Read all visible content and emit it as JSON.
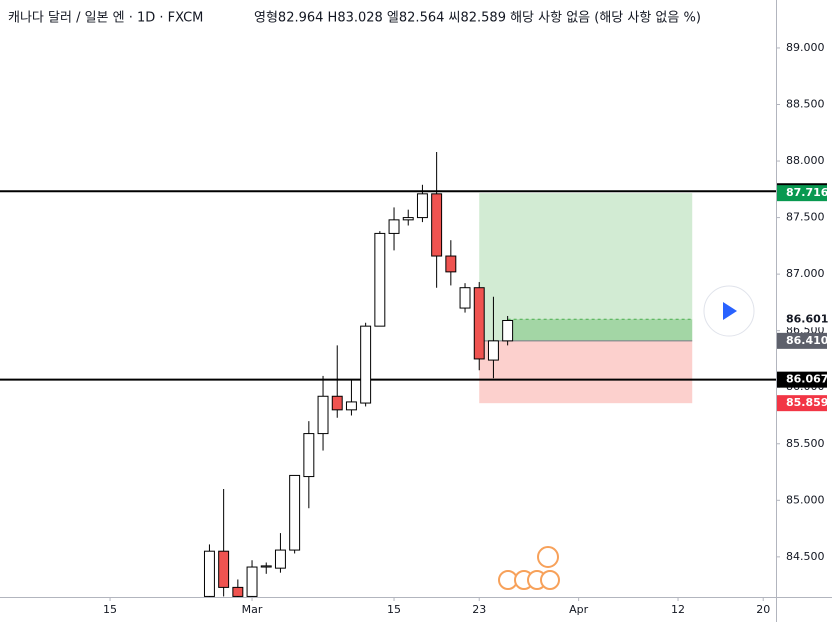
{
  "chart_data": {
    "type": "candlestick",
    "title": "캐나다 달러 / 일본 엔 · 1D · FXCM",
    "legend_text": "영형82.964 H83.028 엘82.564 씨82.589 해당 사항 없음 (해당 사항 없음 %)",
    "x": [
      -3,
      -2,
      -1,
      0,
      1,
      2,
      3,
      4,
      5,
      6,
      7,
      8,
      9,
      10,
      11,
      12,
      13,
      14,
      15,
      16,
      17,
      18
    ],
    "open": [
      84.15,
      84.55,
      84.23,
      84.15,
      84.41,
      84.4,
      84.56,
      85.21,
      85.59,
      85.92,
      85.8,
      85.86,
      86.54,
      87.36,
      87.48,
      87.5,
      87.71,
      87.16,
      86.7,
      86.88,
      86.24,
      86.41
    ],
    "high": [
      84.61,
      85.1,
      84.3,
      84.47,
      84.45,
      84.71,
      85.22,
      85.7,
      86.1,
      86.37,
      86.06,
      86.57,
      87.38,
      87.59,
      87.57,
      87.79,
      88.08,
      87.3,
      86.92,
      86.93,
      86.8,
      86.63
    ],
    "low": [
      84.1,
      84.15,
      84.1,
      84.1,
      84.35,
      84.36,
      84.53,
      84.93,
      85.44,
      85.73,
      85.75,
      85.83,
      86.54,
      87.21,
      87.43,
      87.46,
      86.88,
      86.9,
      86.66,
      86.15,
      86.08,
      86.37
    ],
    "close": [
      84.55,
      84.23,
      84.15,
      84.41,
      84.42,
      84.56,
      85.22,
      85.59,
      85.92,
      85.8,
      85.87,
      86.54,
      87.36,
      87.48,
      87.5,
      87.71,
      87.16,
      87.02,
      86.88,
      86.25,
      86.41,
      86.59
    ],
    "up_color": "#ffffff",
    "down_color": "#ef5350",
    "xlim": [
      -17.75,
      36.9
    ],
    "xticks": [
      {
        "value": -10,
        "label": "15"
      },
      {
        "value": 0,
        "label": "Mar"
      },
      {
        "value": 10,
        "label": "15"
      },
      {
        "value": 16,
        "label": "23"
      },
      {
        "value": 23,
        "label": "Apr"
      },
      {
        "value": 30,
        "label": "12"
      },
      {
        "value": 36,
        "label": "20"
      }
    ],
    "ylim": [
      84.145,
      89.424
    ],
    "yticks": [
      {
        "value": 84.5,
        "label": "84.500"
      },
      {
        "value": 85,
        "label": "85.000"
      },
      {
        "value": 85.5,
        "label": "85.500"
      },
      {
        "value": 86,
        "label": "86.000"
      },
      {
        "value": 86.5,
        "label": "86.500"
      },
      {
        "value": 87,
        "label": "87.000"
      },
      {
        "value": 87.5,
        "label": "87.500"
      },
      {
        "value": 88,
        "label": "88.000"
      },
      {
        "value": 88.5,
        "label": "88.500"
      },
      {
        "value": 89,
        "label": "89.000"
      }
    ],
    "horizontal_lines": [
      87.733,
      86.067
    ],
    "current_price": 86.601,
    "position": {
      "start": 16,
      "end": 31,
      "entry": {
        "value": 86.41,
        "label": "86.410"
      },
      "target": 87.716,
      "stop": 85.859
    }
  }
}
